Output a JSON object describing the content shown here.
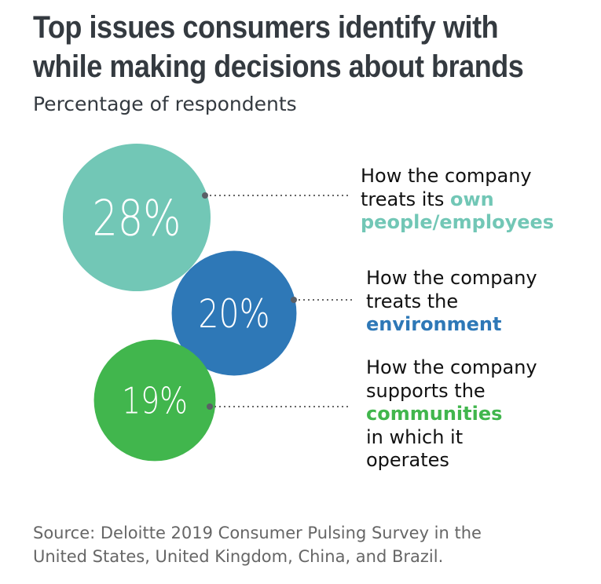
{
  "title_lines": [
    "Top issues consumers identify with",
    "while making decisions about brands"
  ],
  "subtitle": "Percentage of respondents",
  "chart_data": {
    "type": "bubble",
    "title": "Top issues consumers identify with while making decisions about brands",
    "subtitle": "Percentage of respondents",
    "unit": "%",
    "items": [
      {
        "value": 28,
        "display": "28%",
        "color": "#72c7b6",
        "label_lines": [
          "How the company",
          "treats its "
        ],
        "highlight": [
          "own",
          "people/employees"
        ]
      },
      {
        "value": 20,
        "display": "20%",
        "color": "#2e78b7",
        "label_lines": [
          "How the company",
          "treats the"
        ],
        "highlight": [
          "environment"
        ]
      },
      {
        "value": 19,
        "display": "19%",
        "color": "#41b64d",
        "label_lines": [
          "How the company",
          "supports the"
        ],
        "highlight": [
          "communities"
        ],
        "tail_lines": [
          "in which it",
          "operates"
        ]
      }
    ]
  },
  "source_lines": [
    "Source: Deloitte 2019 Consumer Pulsing Survey in the",
    "United States, United Kingdom, China, and Brazil."
  ]
}
